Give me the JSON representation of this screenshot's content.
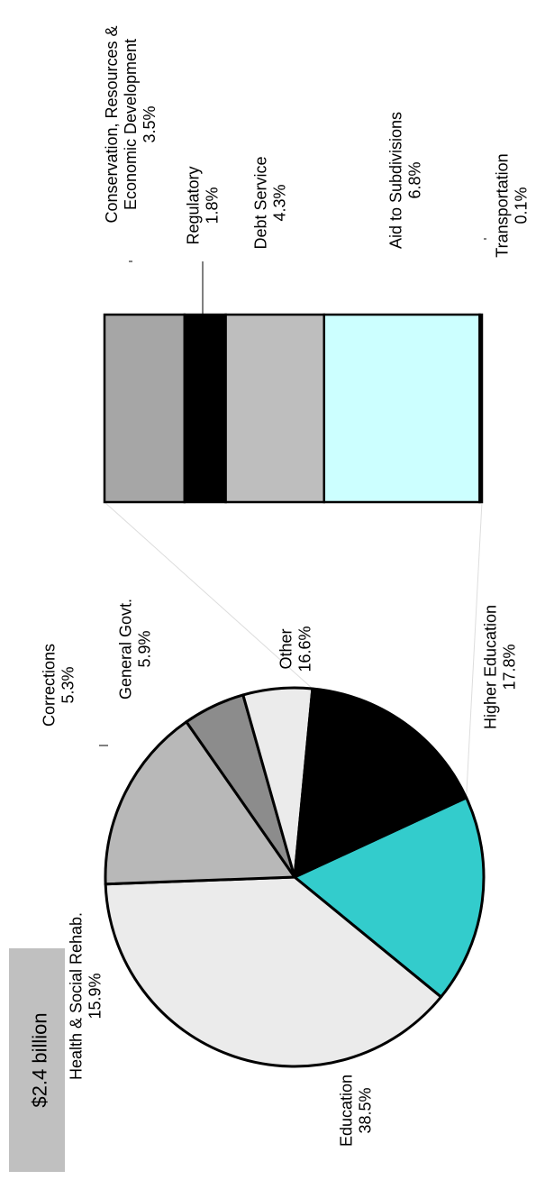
{
  "chart_data": [
    {
      "type": "pie",
      "total_label": "$2.4 billion",
      "slices": [
        {
          "label": "Higher Education",
          "value": 17.8,
          "value_label": "17.8%",
          "color": "#33cccc"
        },
        {
          "label": "Education",
          "value": 38.5,
          "value_label": "38.5%",
          "color": "#ebebeb"
        },
        {
          "label": "Health & Social Rehab.",
          "value": 15.9,
          "value_label": "15.9%",
          "color": "#b8b8b8"
        },
        {
          "label": "Corrections",
          "value": 5.3,
          "value_label": "5.3%",
          "color": "#8c8c8c"
        },
        {
          "label": "General Govt.",
          "value": 5.9,
          "value_label": "5.9%",
          "color": "#ebebeb"
        },
        {
          "label": "Other",
          "value": 16.6,
          "value_label": "16.6%",
          "color": "#000000"
        }
      ]
    },
    {
      "type": "bar",
      "stacked": true,
      "breakdown_of": "Other",
      "segments": [
        {
          "label": "Conservation, Resources & Economic Development",
          "label_lines": [
            "Conservation, Resources &",
            "Economic Development"
          ],
          "value": 3.5,
          "value_label": "3.5%",
          "color": "#a6a6a6"
        },
        {
          "label": "Regulatory",
          "label_lines": [
            "Regulatory"
          ],
          "value": 1.8,
          "value_label": "1.8%",
          "color": "#000000"
        },
        {
          "label": "Debt Service",
          "label_lines": [
            "Debt Service"
          ],
          "value": 4.3,
          "value_label": "4.3%",
          "color": "#bebebe"
        },
        {
          "label": "Aid to Subdivisions",
          "label_lines": [
            "Aid to Subdivisions"
          ],
          "value": 6.8,
          "value_label": "6.8%",
          "color": "#ccffff"
        },
        {
          "label": "Transportation",
          "label_lines": [
            "Transportation"
          ],
          "value": 0.1,
          "value_label": "0.1%",
          "color": "#000000"
        }
      ]
    }
  ]
}
